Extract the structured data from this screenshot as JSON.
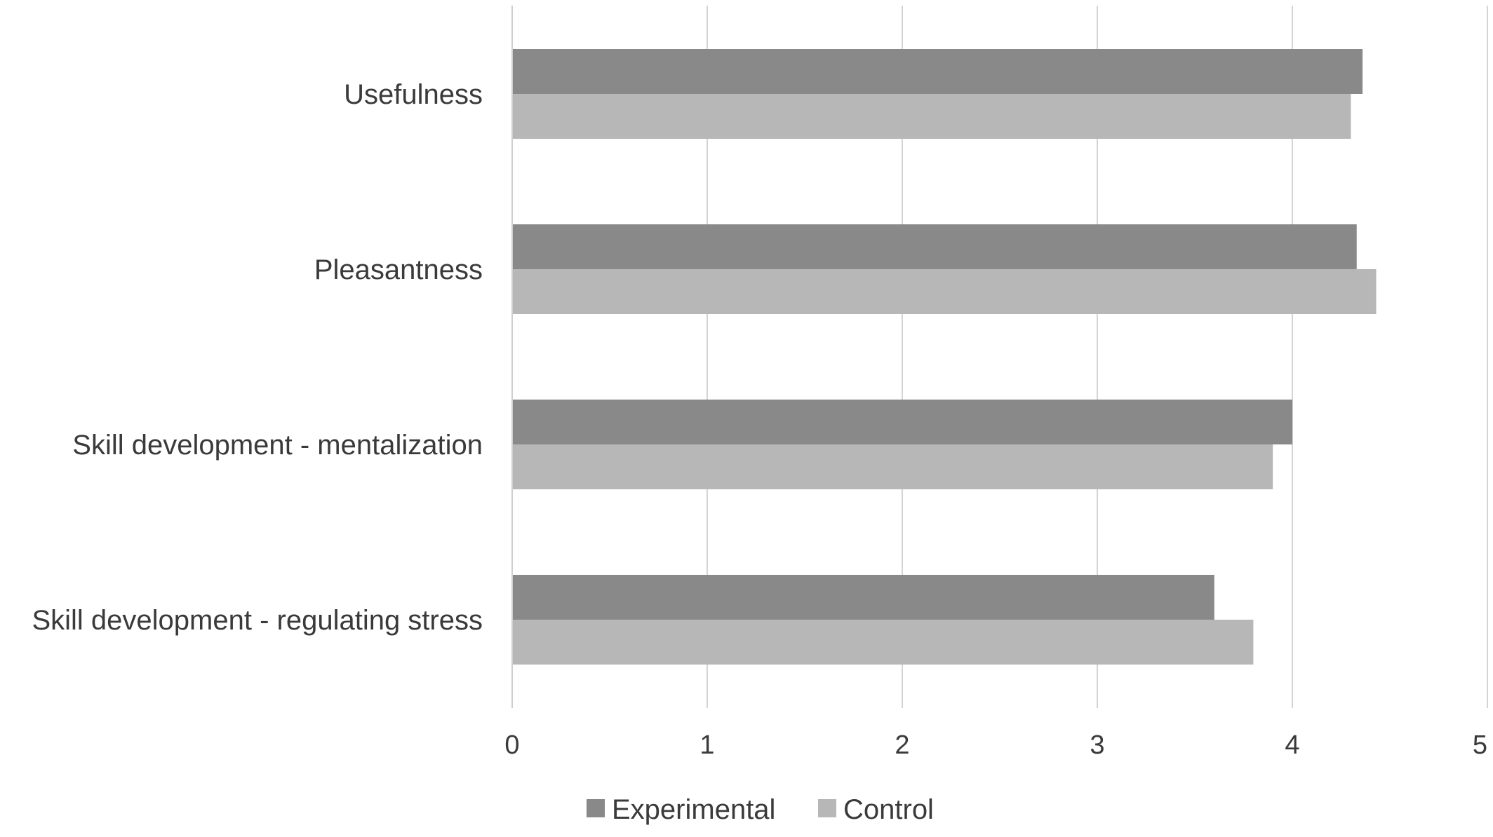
{
  "chart_data": {
    "type": "bar",
    "orientation": "horizontal",
    "title": "",
    "xlabel": "",
    "ylabel": "",
    "categories": [
      "Usefulness",
      "Pleasantness",
      "Skill development - mentalization",
      "Skill development - regulating stress"
    ],
    "series": [
      {
        "name": "Experimental",
        "color": "#898989",
        "values": [
          4.36,
          4.33,
          4.0,
          3.6
        ]
      },
      {
        "name": "Control",
        "color": "#b7b7b7",
        "values": [
          4.3,
          4.43,
          3.9,
          3.8
        ]
      }
    ],
    "xlim": [
      0,
      5
    ],
    "xticks": [
      "0",
      "1",
      "2",
      "3",
      "4",
      "5"
    ],
    "grid": "vertical",
    "legend": "bottom-center"
  }
}
